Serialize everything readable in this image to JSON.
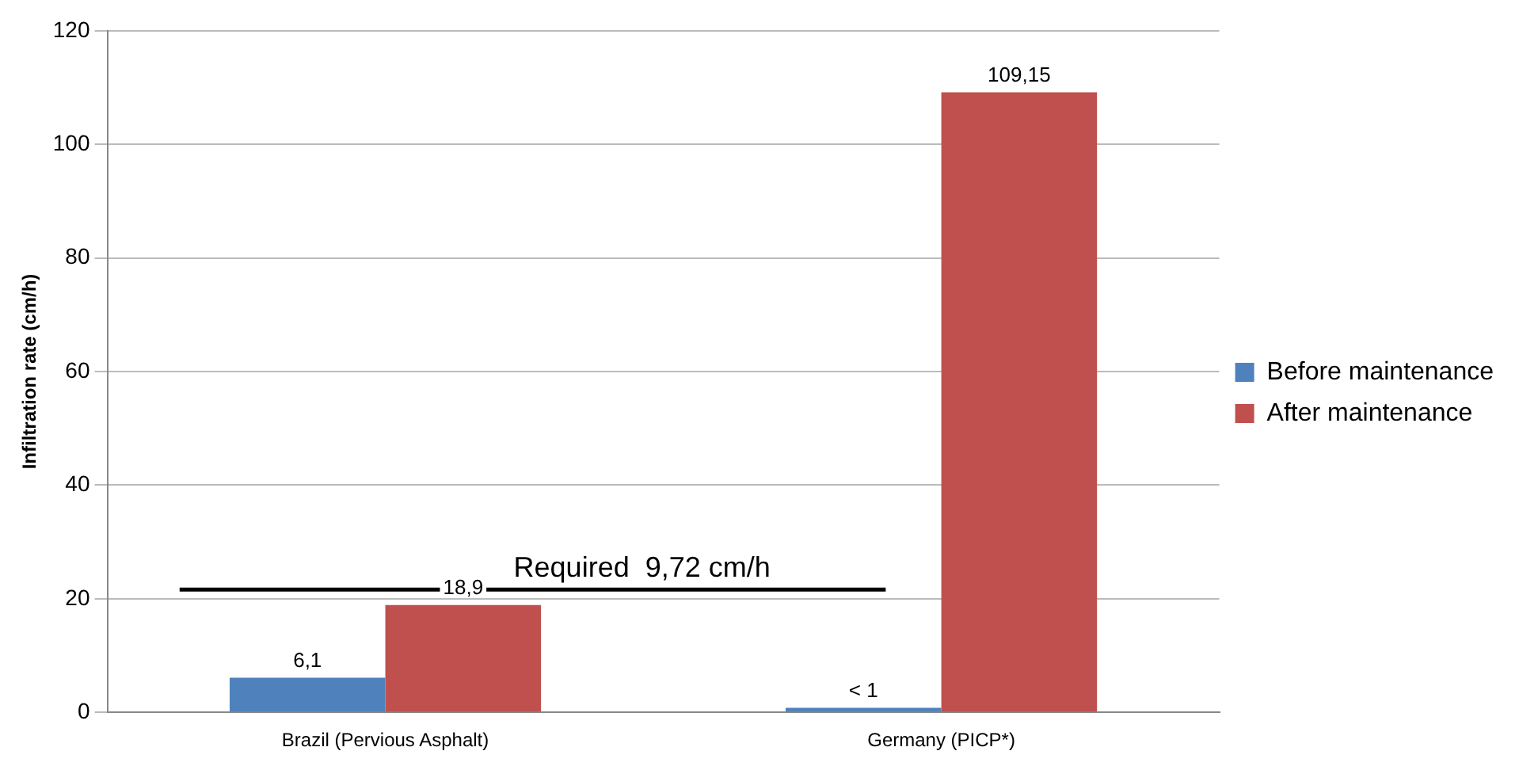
{
  "chart_data": {
    "type": "bar",
    "ylabel": "Infiltration rate (cm/h)",
    "categories": [
      "Brazil (Pervious Asphalt)",
      "Germany (PICP*)"
    ],
    "series": [
      {
        "name": "Before maintenance",
        "color": "#4f81bd",
        "values": [
          6.1,
          0.8
        ],
        "value_labels": [
          "6,1",
          "< 1"
        ]
      },
      {
        "name": "After maintenance",
        "color": "#c0504d",
        "values": [
          18.9,
          109.15
        ],
        "value_labels": [
          "18,9",
          "109,15"
        ]
      }
    ],
    "ylim": [
      0,
      120
    ],
    "yticks": [
      0,
      20,
      40,
      60,
      80,
      100,
      120
    ],
    "grid": "y",
    "legend": "right",
    "ref_lines": [
      {
        "axis": "y",
        "value": 21.6,
        "label": "Required  9,72 cm/h",
        "color": "#000000"
      }
    ]
  }
}
